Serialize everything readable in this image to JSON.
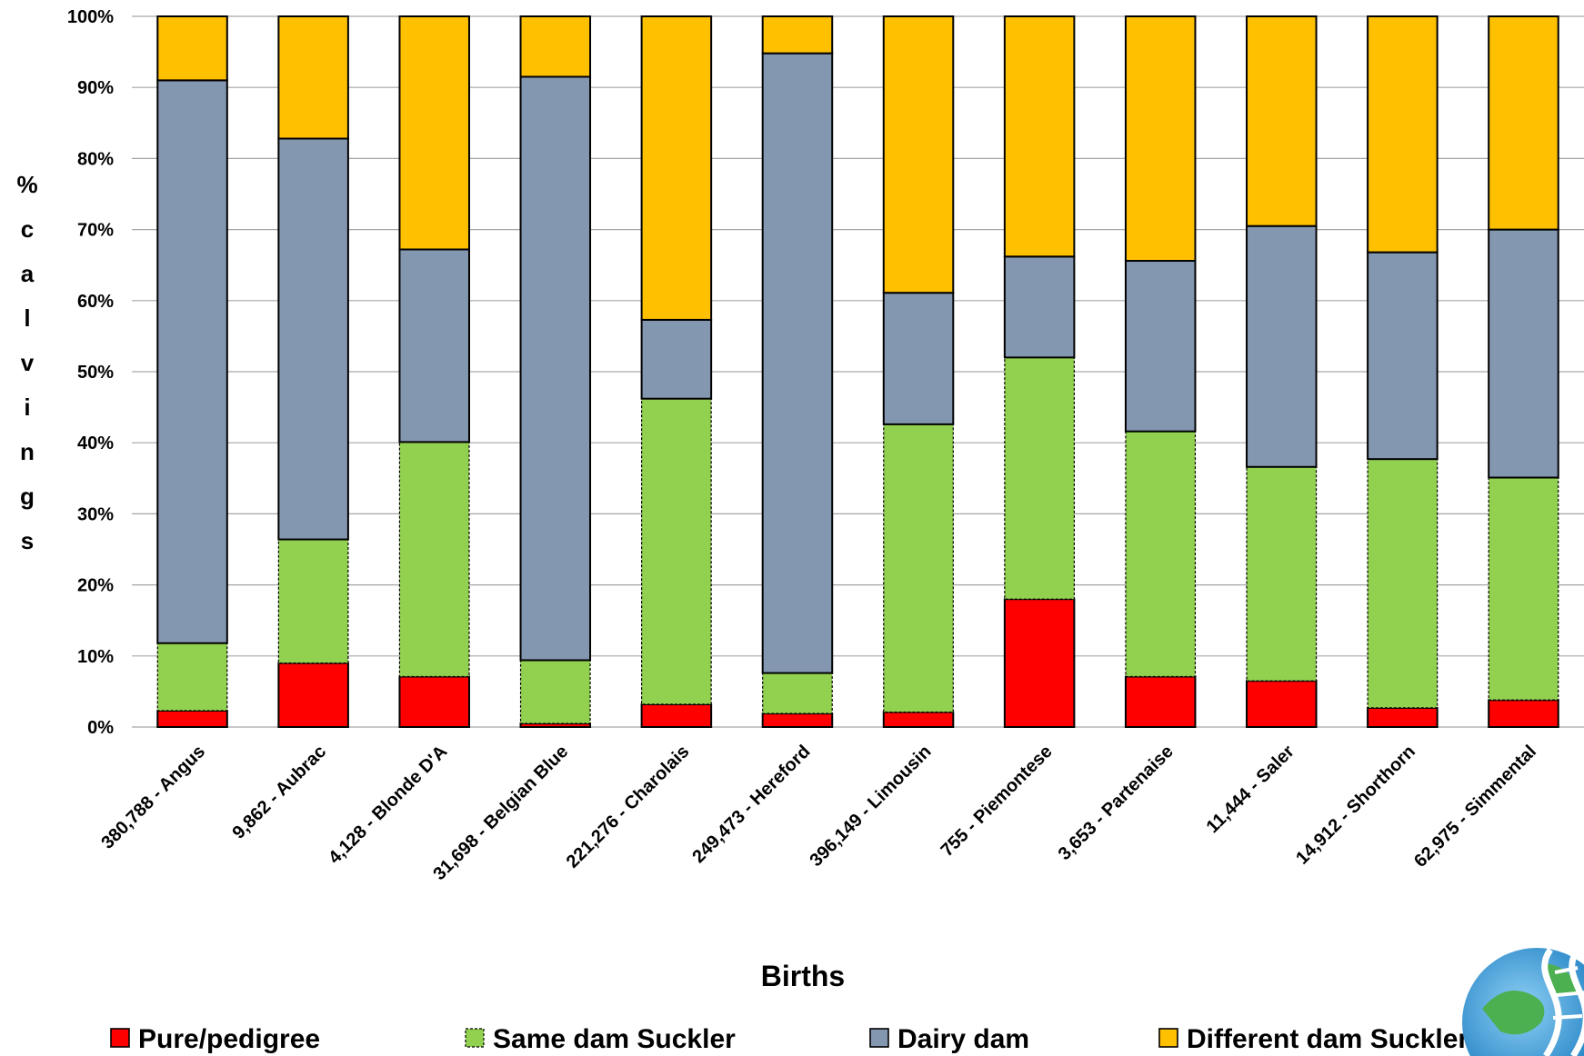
{
  "chart_data": {
    "type": "bar",
    "stacked": true,
    "percent_stacked": true,
    "title": "",
    "xlabel": "Births",
    "ylabel": "% calvings",
    "ylim": [
      0,
      100
    ],
    "y_ticks": [
      "0%",
      "10%",
      "20%",
      "30%",
      "40%",
      "50%",
      "60%",
      "70%",
      "80%",
      "90%",
      "100%"
    ],
    "grid": true,
    "legend_position": "bottom",
    "categories": [
      "380,788 - Angus",
      "9,862 - Aubrac",
      "4,128 - Blonde D'A",
      "31,698 - Belgian Blue",
      "221,276 - Charolais",
      "249,473 - Hereford",
      "396,149 - Limousin",
      "755 - Piemontese",
      "3,653 - Partenaise",
      "11,444 - Saler",
      "14,912 - Shorthorn",
      "62,975 - Simmental"
    ],
    "series": [
      {
        "name": "Pure/pedigree",
        "color": "#ff0000",
        "dashed": false,
        "values": [
          2.3,
          9.0,
          7.1,
          0.5,
          3.2,
          1.9,
          2.1,
          18.0,
          7.1,
          6.5,
          2.7,
          3.8
        ]
      },
      {
        "name": "Same dam Suckler",
        "color": "#92d050",
        "dashed": true,
        "values": [
          9.5,
          17.4,
          33.0,
          8.9,
          43.0,
          5.7,
          40.5,
          34.0,
          34.5,
          30.1,
          35.0,
          31.3
        ]
      },
      {
        "name": "Dairy dam",
        "color": "#8497b0",
        "dashed": false,
        "values": [
          79.2,
          56.4,
          27.1,
          82.1,
          11.1,
          87.2,
          18.5,
          14.2,
          24.0,
          33.9,
          29.1,
          34.9
        ]
      },
      {
        "name": "Different dam Suckler",
        "color": "#ffc000",
        "dashed": false,
        "values": [
          9.0,
          17.2,
          32.8,
          8.5,
          42.7,
          5.2,
          38.9,
          33.8,
          34.4,
          29.5,
          33.2,
          30.0
        ]
      }
    ]
  }
}
